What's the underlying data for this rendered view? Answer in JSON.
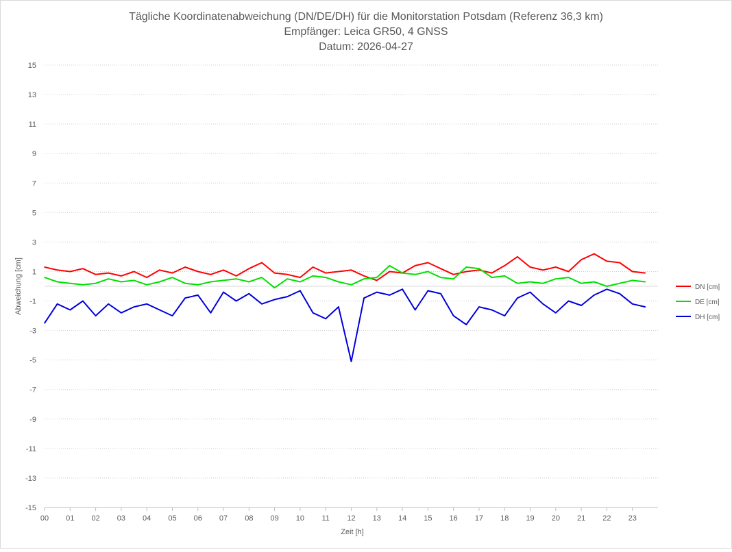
{
  "chart_data": {
    "type": "line",
    "title_lines": [
      "Tägliche Koordinatenabweichung (DN/DE/DH) für die Monitorstation Potsdam (Referenz 36,3 km)",
      "Empfänger: Leica GR50, 4 GNSS",
      "Datum: 2026-04-27"
    ],
    "xlabel": "Zeit [h]",
    "ylabel": "Abweichung [cm]",
    "xlim": [
      0,
      24
    ],
    "ylim": [
      -15,
      15
    ],
    "x_ticks": [
      "00",
      "01",
      "02",
      "03",
      "04",
      "05",
      "06",
      "07",
      "08",
      "09",
      "10",
      "11",
      "12",
      "13",
      "14",
      "15",
      "16",
      "17",
      "18",
      "19",
      "20",
      "21",
      "22",
      "23"
    ],
    "y_ticks": [
      15,
      13,
      11,
      9,
      7,
      5,
      3,
      1,
      -1,
      -3,
      -5,
      -7,
      -9,
      -11,
      -13,
      -15
    ],
    "grid": "horizontal dotted",
    "legend_position": "right",
    "series": [
      {
        "name": "DN [cm]",
        "color": "#ff0000",
        "x_step_h": 0.5,
        "values": [
          1.3,
          1.1,
          1.0,
          1.2,
          0.8,
          0.9,
          0.7,
          1.0,
          0.6,
          1.1,
          0.9,
          1.3,
          1.0,
          0.8,
          1.1,
          0.7,
          1.2,
          1.6,
          0.9,
          0.8,
          0.6,
          1.3,
          0.9,
          1.0,
          1.1,
          0.7,
          0.4,
          1.0,
          0.9,
          1.4,
          1.6,
          1.2,
          0.8,
          1.0,
          1.1,
          0.9,
          1.4,
          2.0,
          1.3,
          1.1,
          1.3,
          1.0,
          1.8,
          2.2,
          1.7,
          1.6,
          1.0,
          0.9
        ]
      },
      {
        "name": "DE [cm]",
        "color": "#00e000",
        "x_step_h": 0.5,
        "values": [
          0.6,
          0.3,
          0.2,
          0.1,
          0.2,
          0.5,
          0.3,
          0.4,
          0.1,
          0.3,
          0.6,
          0.2,
          0.1,
          0.3,
          0.4,
          0.5,
          0.3,
          0.6,
          -0.1,
          0.5,
          0.3,
          0.7,
          0.6,
          0.3,
          0.1,
          0.5,
          0.6,
          1.4,
          0.9,
          0.8,
          1.0,
          0.6,
          0.5,
          1.3,
          1.2,
          0.6,
          0.7,
          0.2,
          0.3,
          0.2,
          0.5,
          0.6,
          0.2,
          0.3,
          0.0,
          0.2,
          0.4,
          0.3
        ]
      },
      {
        "name": "DH [cm]",
        "color": "#0000dd",
        "x_step_h": 0.5,
        "values": [
          -2.5,
          -1.2,
          -1.6,
          -1.0,
          -2.0,
          -1.2,
          -1.8,
          -1.4,
          -1.2,
          -1.6,
          -2.0,
          -0.8,
          -0.6,
          -1.8,
          -0.4,
          -1.0,
          -0.5,
          -1.2,
          -0.9,
          -0.7,
          -0.3,
          -1.8,
          -2.2,
          -1.4,
          -5.1,
          -0.8,
          -0.4,
          -0.6,
          -0.2,
          -1.6,
          -0.3,
          -0.5,
          -2.0,
          -2.6,
          -1.4,
          -1.6,
          -2.0,
          -0.8,
          -0.4,
          -1.2,
          -1.8,
          -1.0,
          -1.3,
          -0.6,
          -0.2,
          -0.5,
          -1.2,
          -1.4
        ]
      }
    ]
  }
}
